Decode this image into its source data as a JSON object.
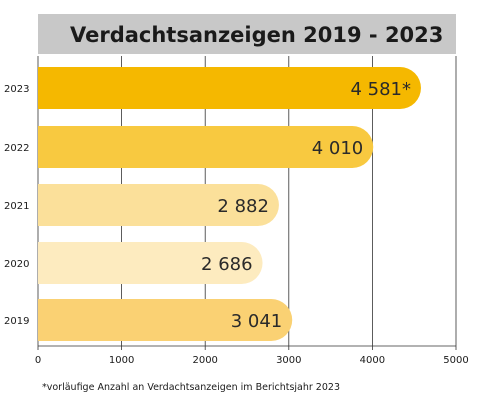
{
  "chart_data": {
    "type": "bar",
    "orientation": "horizontal",
    "title": "Verdachtsanzeigen 2019 - 2023",
    "categories": [
      "2023",
      "2022",
      "2021",
      "2020",
      "2019"
    ],
    "values": [
      4581,
      4010,
      2882,
      2686,
      3041
    ],
    "value_labels": [
      "4 581*",
      "4 010",
      "2 882",
      "2 686",
      "3 041"
    ],
    "bar_colors": [
      "#f5b800",
      "#f8c940",
      "#fbe09a",
      "#fdebbf",
      "#fad173"
    ],
    "xlim": [
      0,
      5000
    ],
    "xticks": [
      0,
      1000,
      2000,
      3000,
      4000,
      5000
    ],
    "xtick_labels": [
      "0",
      "1000",
      "2000",
      "3000",
      "4000",
      "5000"
    ],
    "xlabel": "",
    "ylabel": "",
    "grid": true,
    "footnote": "*vorläufige Anzahl an Verdachtsanzeigen im Berichtsjahr 2023",
    "title_background": "#c8c8c8",
    "grid_color": "#333333"
  }
}
